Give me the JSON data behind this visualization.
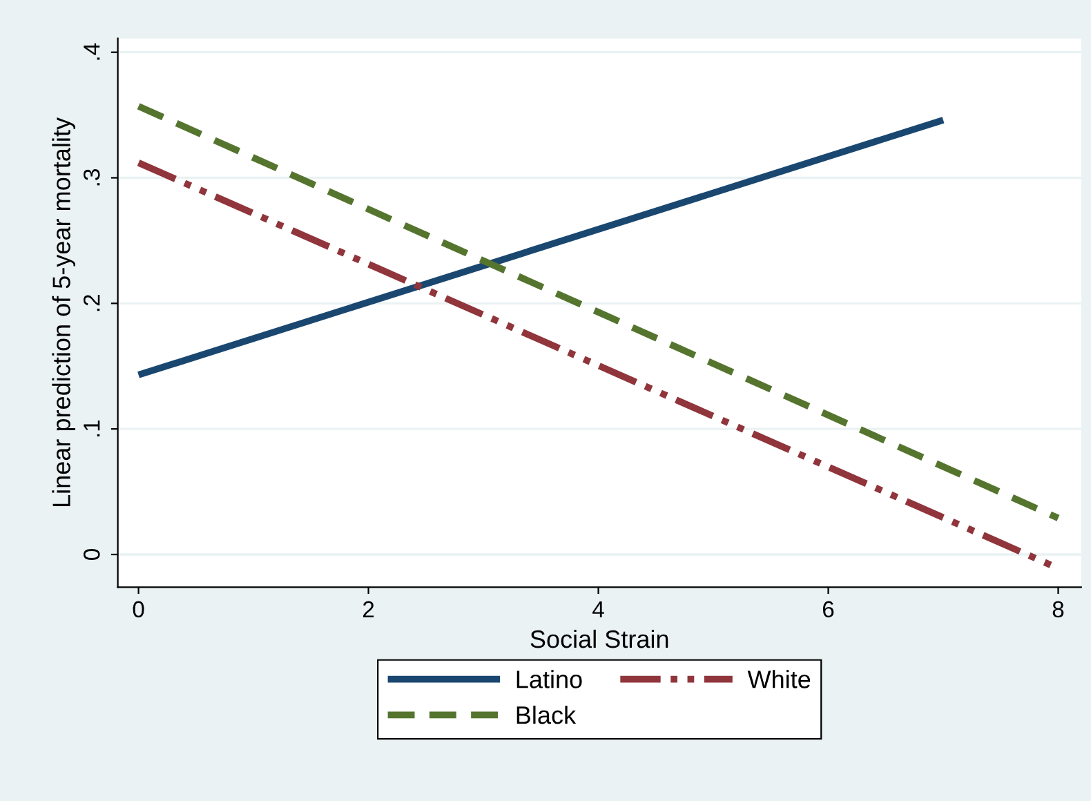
{
  "chart_data": {
    "type": "line",
    "xlabel": "Social Strain",
    "ylabel": "Linear prediction of 5-year mortality",
    "xlim": [
      -0.18,
      8.2
    ],
    "ylim": [
      -0.026,
      0.411
    ],
    "xticks": [
      0,
      2,
      4,
      6,
      8
    ],
    "yticks": [
      0,
      {
        "value": 0.1,
        "label": ".1"
      },
      {
        "value": 0.2,
        "label": ".2"
      },
      {
        "value": 0.3,
        "label": ".3"
      },
      {
        "value": 0.4,
        "label": ".4"
      }
    ],
    "grid": "y",
    "legend": "bottom",
    "series": [
      {
        "name": "Latino",
        "color": "#1a476f",
        "x": [
          0,
          7
        ],
        "values": [
          0.143,
          0.346
        ],
        "line_style": "solid"
      },
      {
        "name": "White",
        "color": "#90353b",
        "x": [
          0,
          8
        ],
        "values": [
          0.312,
          -0.011
        ],
        "line_style": "dashdot"
      },
      {
        "name": "Black",
        "color": "#55752f",
        "x": [
          0,
          8
        ],
        "values": [
          0.357,
          0.029
        ],
        "line_style": "dashed"
      }
    ]
  }
}
